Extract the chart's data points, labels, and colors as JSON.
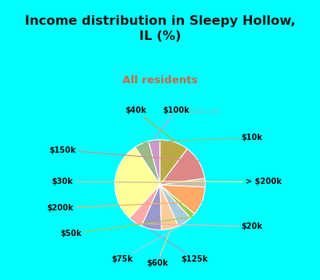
{
  "title": "Income distribution in Sleepy Hollow,\nIL (%)",
  "subtitle": "All residents",
  "title_color": "#1a1a1a",
  "subtitle_color": "#cc6644",
  "bg_color": "#00ffff",
  "chart_bg_top": "#e8f0e8",
  "chart_bg_bottom": "#d0ece0",
  "watermark": "City-Data.com",
  "labels": [
    "$100k",
    "$10k",
    "> $200k",
    "$20k",
    "$125k",
    "$60k",
    "$75k",
    "$50k",
    "$200k",
    "$30k",
    "$150k",
    "$40k"
  ],
  "values": [
    4,
    5,
    28,
    5,
    7,
    6,
    5,
    2,
    10,
    3,
    12,
    10
  ],
  "colors": [
    "#cc99cc",
    "#99bb88",
    "#ffff99",
    "#ffaaaa",
    "#9999cc",
    "#ffcc99",
    "#aaccdd",
    "#99cc55",
    "#ffaa66",
    "#ccbbaa",
    "#dd8888",
    "#bbaa44"
  ],
  "startangle": 90
}
